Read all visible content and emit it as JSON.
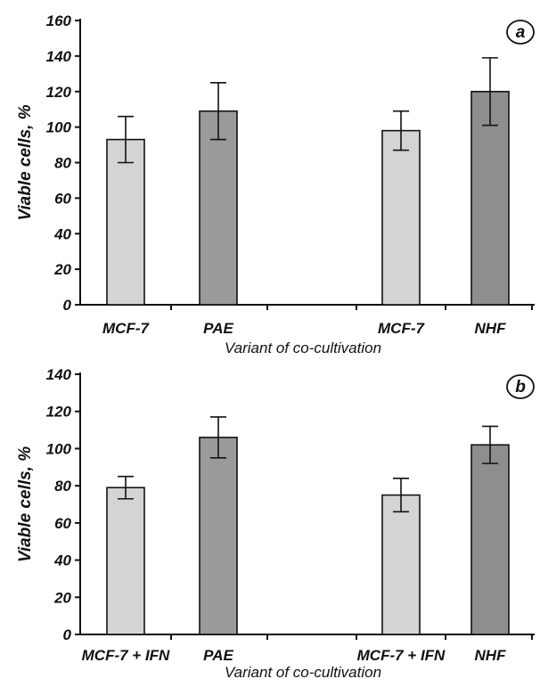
{
  "figure": {
    "panels": [
      "a",
      "b"
    ]
  },
  "chart_data": [
    {
      "type": "bar",
      "panel_label": "a",
      "ylabel": "Viable cells, %",
      "xlabel": "Variant of co-cultivation",
      "ylim": [
        0,
        160
      ],
      "yticks": [
        "0",
        "20",
        "40",
        "60",
        "80",
        "100",
        "120",
        "140",
        "160"
      ],
      "categories": [
        "MCF-7",
        "PAE",
        "MCF-7",
        "NHF"
      ],
      "values": [
        93,
        109,
        98,
        120
      ],
      "errors": [
        13,
        16,
        11,
        19
      ],
      "colors": [
        "#d4d4d4",
        "#9a9a9a",
        "#d4d4d4",
        "#8e8e8e"
      ],
      "grid": false
    },
    {
      "type": "bar",
      "panel_label": "b",
      "ylabel": "Viable cells, %",
      "xlabel": "Variant of co-cultivation",
      "ylim": [
        0,
        140
      ],
      "yticks": [
        "0",
        "20",
        "40",
        "60",
        "80",
        "100",
        "120",
        "140"
      ],
      "categories": [
        "MCF-7 + IFN",
        "PAE",
        "MCF-7 + IFN",
        "NHF"
      ],
      "values": [
        79,
        106,
        75,
        102
      ],
      "errors": [
        6,
        11,
        9,
        10
      ],
      "colors": [
        "#d4d4d4",
        "#9a9a9a",
        "#d4d4d4",
        "#8e8e8e"
      ],
      "grid": false
    }
  ]
}
